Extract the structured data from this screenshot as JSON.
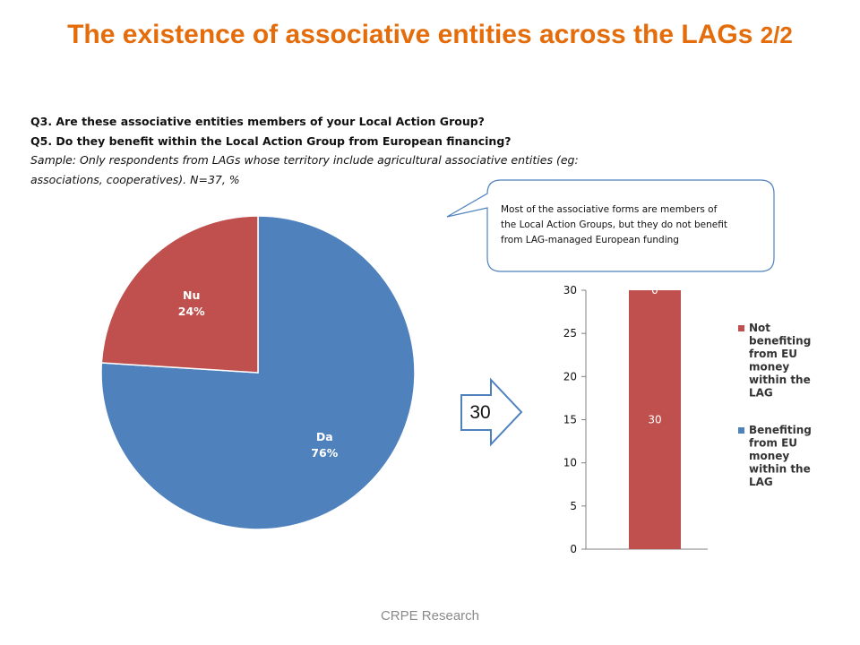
{
  "title": {
    "main": "The existence of associative entities across the LAGs",
    "part": "2/2",
    "color": "#e46c0a"
  },
  "questions": {
    "q3": "Q3. Are these associative entities members of your Local Action Group?",
    "q5": "Q5. Do they benefit within the Local Action Group from European financing?",
    "sample_line1": "Sample: Only respondents from LAGs whose territory include agricultural associative entities (eg:",
    "sample_line2": "associations, cooperatives). N=37, %"
  },
  "callout": {
    "line1": "Most of the associative forms are members of",
    "line2": "the Local Action Groups, but they do not  benefit",
    "line3": "from LAG-managed European funding"
  },
  "arrow": {
    "label": "30"
  },
  "footer": {
    "text": "CRPE Research"
  },
  "colors": {
    "blue": "#4f81bd",
    "red": "#c0504d"
  },
  "chart_data": [
    {
      "type": "pie",
      "slices": [
        {
          "label": "Da",
          "value": 76,
          "value_label": "76%",
          "color": "#4f81bd"
        },
        {
          "label": "Nu",
          "value": 24,
          "value_label": "24%",
          "color": "#c0504d"
        }
      ]
    },
    {
      "type": "bar",
      "stacked": true,
      "ylim": [
        0,
        30
      ],
      "yticks": [
        "0",
        "5",
        "10",
        "15",
        "20",
        "25",
        "30"
      ],
      "series": [
        {
          "name": "Not benefiting from EU money within the LAG",
          "values": [
            30
          ],
          "value_label": "30",
          "color": "#c0504d"
        },
        {
          "name": "Benefiting from EU money within the LAG",
          "values": [
            0
          ],
          "value_label": "0",
          "color": "#4f81bd"
        }
      ],
      "legend": {
        "position": "right",
        "items": [
          {
            "lines": [
              "Not",
              "benefiting",
              "from EU",
              "money",
              "within the",
              "LAG"
            ],
            "color": "#c0504d"
          },
          {
            "lines": [
              "Benefiting",
              "from EU",
              "money",
              "within the",
              "LAG"
            ],
            "color": "#4f81bd"
          }
        ]
      }
    }
  ]
}
